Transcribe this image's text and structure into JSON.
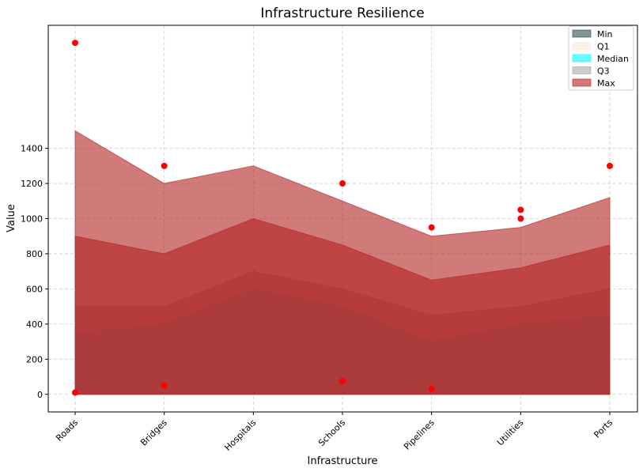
{
  "chart_data": {
    "type": "area",
    "title": "Infrastructure Resilience",
    "xlabel": "Infrastructure",
    "ylabel": "Value",
    "categories": [
      "Roads",
      "Bridges",
      "Hospitals",
      "Schools",
      "Pipelines",
      "Utilities",
      "Ports"
    ],
    "ylim": [
      -100,
      2100
    ],
    "yticks": [
      0,
      200,
      400,
      600,
      800,
      1000,
      1200,
      1400
    ],
    "grid": true,
    "stacked": false,
    "legend_position": "top-right",
    "series": [
      {
        "name": "Min",
        "values": [
          50,
          100,
          200,
          150,
          80,
          100,
          120
        ],
        "color": "#2f4f4f"
      },
      {
        "name": "Q1",
        "values": [
          200,
          300,
          400,
          350,
          250,
          280,
          320
        ],
        "color": "#faebd7"
      },
      {
        "name": "Median",
        "values": [
          350,
          400,
          600,
          500,
          300,
          400,
          450
        ],
        "color": "#00ffff"
      },
      {
        "name": "Q3",
        "values": [
          500,
          500,
          700,
          600,
          450,
          500,
          600
        ],
        "color": "#a9a9a9"
      },
      {
        "name": "Max",
        "values": [
          900,
          800,
          1000,
          850,
          650,
          720,
          850
        ],
        "color": "#b22222"
      },
      {
        "name": "",
        "values": [
          1500,
          1200,
          1300,
          1100,
          900,
          950,
          1120
        ],
        "color": "#b22222"
      }
    ],
    "outliers": [
      {
        "category": "Roads",
        "value": 2000
      },
      {
        "category": "Roads",
        "value": 10
      },
      {
        "category": "Bridges",
        "value": 1300
      },
      {
        "category": "Bridges",
        "value": 50
      },
      {
        "category": "Schools",
        "value": 1200
      },
      {
        "category": "Schools",
        "value": 75
      },
      {
        "category": "Pipelines",
        "value": 950
      },
      {
        "category": "Pipelines",
        "value": 30
      },
      {
        "category": "Utilities",
        "value": 1050
      },
      {
        "category": "Utilities",
        "value": 1000
      },
      {
        "category": "Ports",
        "value": 1300
      }
    ],
    "outlier_color": "#ff0000"
  }
}
